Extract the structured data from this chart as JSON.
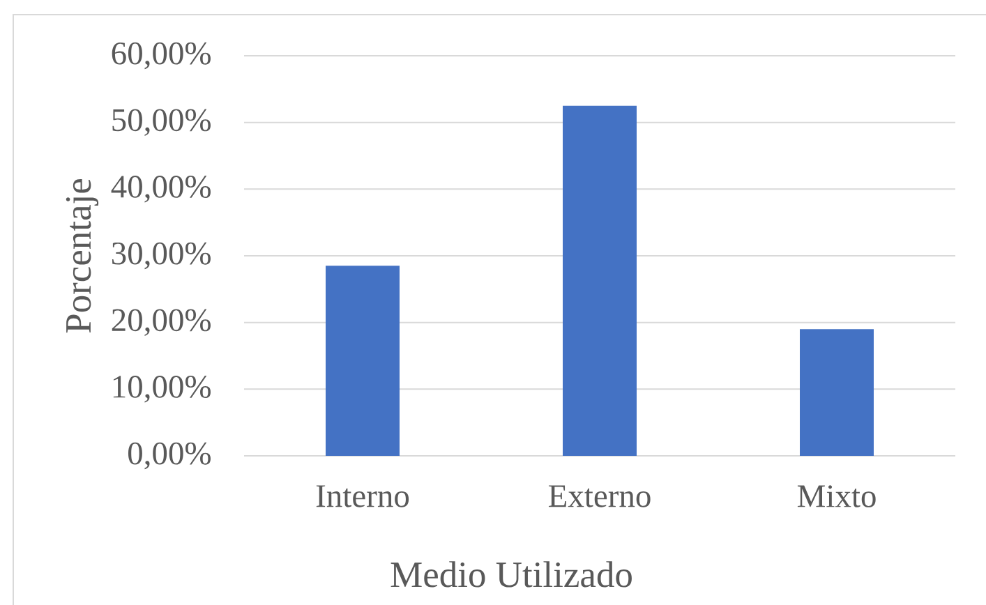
{
  "chart_data": {
    "type": "bar",
    "xlabel": "Medio Utilizado",
    "ylabel": "Porcentaje",
    "categories": [
      "Interno",
      "Externo",
      "Mixto"
    ],
    "values": [
      28.5,
      52.5,
      19.0
    ],
    "color": "#4472c4",
    "ylim": [
      0,
      60
    ],
    "yticks": [
      {
        "value": 0,
        "label": "0,00%"
      },
      {
        "value": 10,
        "label": "10,00%"
      },
      {
        "value": 20,
        "label": "20,00%"
      },
      {
        "value": 30,
        "label": "30,00%"
      },
      {
        "value": 40,
        "label": "40,00%"
      },
      {
        "value": 50,
        "label": "50,00%"
      },
      {
        "value": 60,
        "label": "60,00%"
      }
    ],
    "grid": "y"
  }
}
